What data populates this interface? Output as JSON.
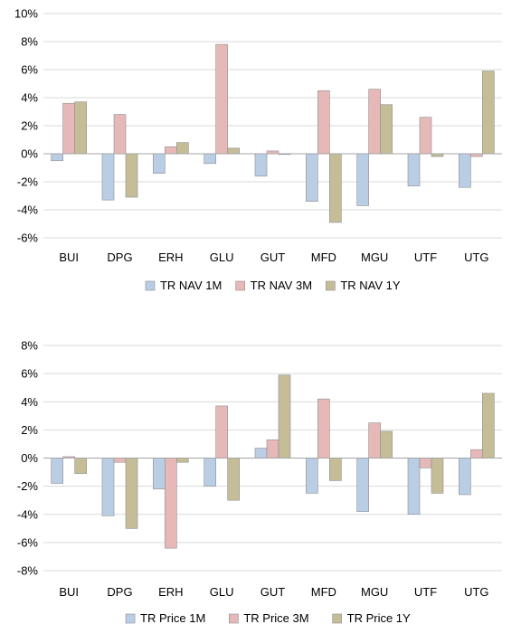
{
  "chart_data": [
    {
      "type": "bar",
      "categories": [
        "BUI",
        "DPG",
        "ERH",
        "GLU",
        "GUT",
        "MFD",
        "MGU",
        "UTF",
        "UTG"
      ],
      "ylim": [
        -6,
        10
      ],
      "ytick_step": 2,
      "ytick_labels": [
        "-6%",
        "-4%",
        "-2%",
        "0%",
        "2%",
        "4%",
        "6%",
        "8%",
        "10%"
      ],
      "grid": true,
      "legend": "bottom",
      "series": [
        {
          "name": "TR NAV 1M",
          "color": "#b9cde5",
          "values": [
            -0.5,
            -3.3,
            -1.4,
            -0.7,
            -1.6,
            -3.4,
            -3.7,
            -2.3,
            -2.4
          ]
        },
        {
          "name": "TR NAV 3M",
          "color": "#e6b9b8",
          "values": [
            3.6,
            2.8,
            0.5,
            7.8,
            0.2,
            4.5,
            4.6,
            2.6,
            -0.2
          ]
        },
        {
          "name": "TR NAV 1Y",
          "color": "#c4bd97",
          "values": [
            3.7,
            -3.1,
            0.8,
            0.4,
            0.0,
            -4.9,
            3.5,
            -0.2,
            5.9
          ]
        }
      ]
    },
    {
      "type": "bar",
      "categories": [
        "BUI",
        "DPG",
        "ERH",
        "GLU",
        "GUT",
        "MFD",
        "MGU",
        "UTF",
        "UTG"
      ],
      "ylim": [
        -8,
        8
      ],
      "ytick_step": 2,
      "ytick_labels": [
        "-8%",
        "-6%",
        "-4%",
        "-2%",
        "0%",
        "2%",
        "4%",
        "6%",
        "8%"
      ],
      "grid": true,
      "legend": "bottom",
      "series": [
        {
          "name": "TR Price 1M",
          "color": "#b9cde5",
          "values": [
            -1.8,
            -4.1,
            -2.2,
            -2.0,
            0.7,
            -2.5,
            -3.8,
            -4.0,
            -2.6
          ]
        },
        {
          "name": "TR Price 3M",
          "color": "#e6b9b8",
          "values": [
            0.1,
            -0.3,
            -6.4,
            3.7,
            1.3,
            4.2,
            2.5,
            -0.7,
            0.6
          ]
        },
        {
          "name": "TR Price 1Y",
          "color": "#c4bd97",
          "values": [
            -1.1,
            -5.0,
            -0.3,
            -3.0,
            5.9,
            -1.6,
            1.9,
            -2.5,
            4.6
          ]
        }
      ]
    }
  ]
}
